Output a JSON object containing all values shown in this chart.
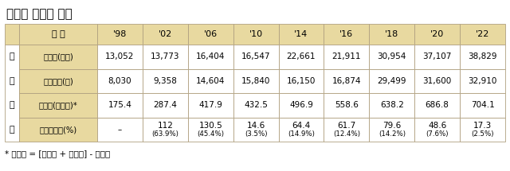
{
  "title": "연도별 유통량 현황",
  "footnote": "* 유통량 = [제조량 + 수입량] - 수출량",
  "header_label": "연 도",
  "years": [
    "'98",
    "'02",
    "'06",
    "'10",
    "'14",
    "'16",
    "'18",
    "'20",
    "'22"
  ],
  "group_chars": [
    "조",
    "사",
    "결",
    "과"
  ],
  "row_labels": [
    "입체수(개소)",
    "화학물질(종)",
    "유통량(백만톤)*",
    "유통량증감(%)"
  ],
  "data": [
    [
      "13,052",
      "13,773",
      "16,404",
      "16,547",
      "22,661",
      "21,911",
      "30,954",
      "37,107",
      "38,829"
    ],
    [
      "8,030",
      "9,358",
      "14,604",
      "15,840",
      "16,150",
      "16,874",
      "29,499",
      "31,600",
      "32,910"
    ],
    [
      "175.4",
      "287.4",
      "417.9",
      "432.5",
      "496.9",
      "558.6",
      "638.2",
      "686.8",
      "704.1"
    ],
    [
      "–",
      "112\n(63.9%)",
      "130.5\n(45.4%)",
      "14.6\n(3.5%)",
      "64.4\n(14.9%)",
      "61.7\n(12.4%)",
      "79.6\n(14.2%)",
      "48.6\n(7.6%)",
      "17.3\n(2.5%)"
    ]
  ],
  "header_bg": "#E8D9A0",
  "white_bg": "#FFFFFF",
  "border_color": "#B0A080",
  "title_fontsize": 11,
  "header_fontsize": 8,
  "data_fontsize": 7.5,
  "sub_fontsize": 6.2,
  "footnote_fontsize": 7.5,
  "group_fontsize": 8
}
